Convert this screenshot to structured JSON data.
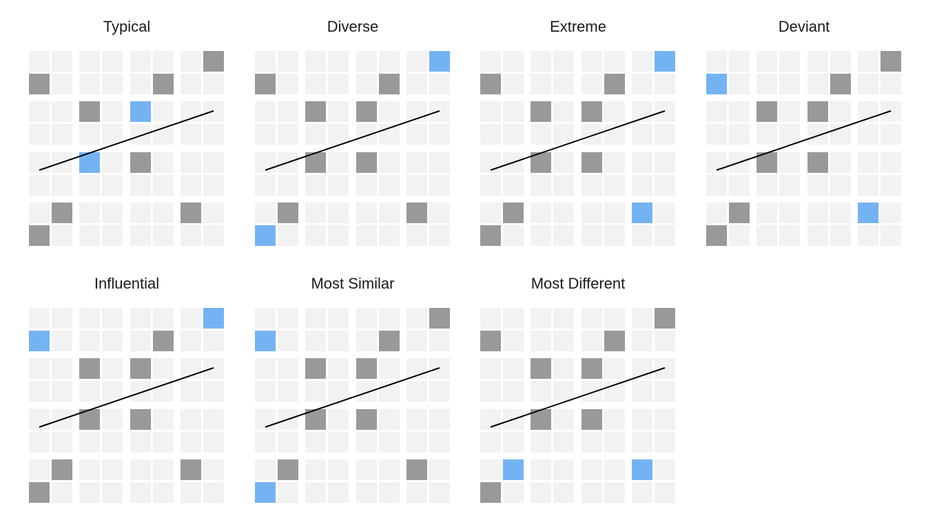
{
  "colors": {
    "cell": "#f2f2f2",
    "selected": "#999999",
    "highlight": "#74b3f3",
    "line": "#000000",
    "background": "#ffffff"
  },
  "grid": {
    "rows": 8,
    "cols": 8,
    "selected_cells": [
      [
        0,
        7
      ],
      [
        1,
        0
      ],
      [
        1,
        5
      ],
      [
        2,
        2
      ],
      [
        2,
        4
      ],
      [
        4,
        2
      ],
      [
        4,
        4
      ],
      [
        6,
        1
      ],
      [
        6,
        6
      ],
      [
        7,
        0
      ]
    ],
    "trend_line": {
      "from_cell": [
        5,
        0
      ],
      "to_cell": [
        2,
        7
      ]
    }
  },
  "panels": [
    {
      "title": "Typical",
      "highlighted_cells": [
        [
          2,
          4
        ],
        [
          4,
          2
        ]
      ]
    },
    {
      "title": "Diverse",
      "highlighted_cells": [
        [
          0,
          7
        ],
        [
          7,
          0
        ]
      ]
    },
    {
      "title": "Extreme",
      "highlighted_cells": [
        [
          0,
          7
        ],
        [
          6,
          6
        ]
      ]
    },
    {
      "title": "Deviant",
      "highlighted_cells": [
        [
          1,
          0
        ],
        [
          6,
          6
        ]
      ]
    },
    {
      "title": "Influential",
      "highlighted_cells": [
        [
          0,
          7
        ],
        [
          1,
          0
        ]
      ]
    },
    {
      "title": "Most Similar",
      "highlighted_cells": [
        [
          1,
          0
        ],
        [
          7,
          0
        ]
      ]
    },
    {
      "title": "Most Different",
      "highlighted_cells": [
        [
          6,
          1
        ],
        [
          6,
          6
        ]
      ]
    }
  ]
}
